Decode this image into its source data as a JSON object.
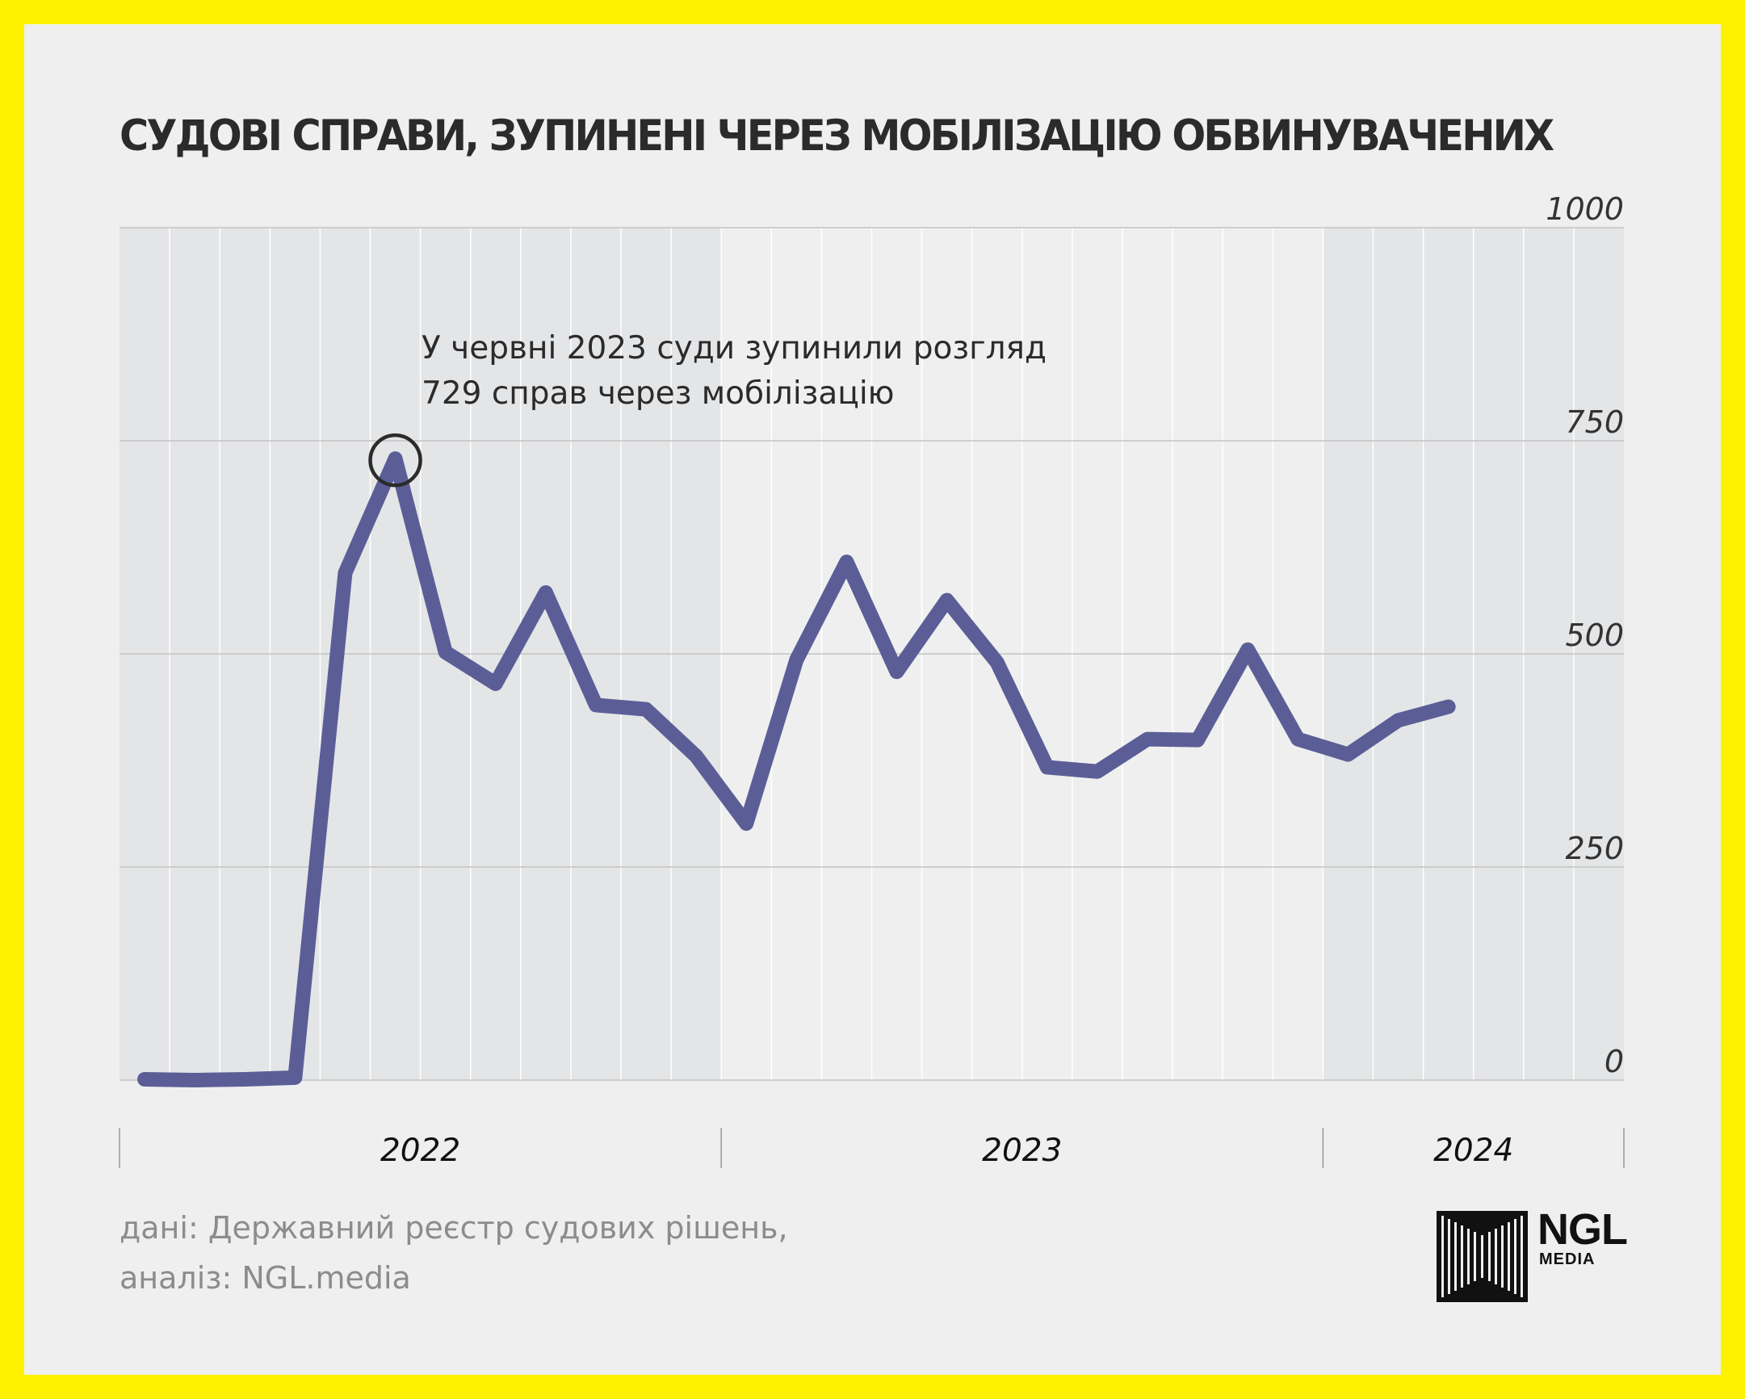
{
  "title": "СУДОВІ СПРАВИ, ЗУПИНЕНІ ЧЕРЕЗ МОБІЛІЗАЦІЮ ОБВИНУВАЧЕНИХ",
  "annotation": {
    "line1": "У червні 2023 суди зупинили розгляд",
    "line2": "729 справ через мобілізацію",
    "highlight_index": 5
  },
  "source": {
    "line1": "дані: Державний реєстр судових рішень,",
    "line2": "аналіз: NGL.media"
  },
  "logo": {
    "main": "NGL",
    "sub": "MEDIA"
  },
  "colors": {
    "line": "#5b5e96",
    "background": "#efefef",
    "band": "#e4e5e7",
    "frame": "#fff200"
  },
  "chart_data": {
    "type": "line",
    "title": "СУДОВІ СПРАВИ, ЗУПИНЕНІ ЧЕРЕЗ МОБІЛІЗАЦІЮ ОБВИНУВАЧЕНИХ",
    "xlabel": "",
    "ylabel": "",
    "ylim": [
      0,
      1000
    ],
    "yticks": [
      0,
      250,
      500,
      750,
      1000
    ],
    "ytick_labels": [
      "0",
      "250",
      "500",
      "750",
      "1000"
    ],
    "year_labels": [
      "2022",
      "2023",
      "2024"
    ],
    "months_total": 30,
    "series": [
      {
        "name": "Судові справи, зупинені через мобілізацію",
        "values": [
          1,
          0,
          1,
          3,
          595,
          729,
          502,
          465,
          572,
          440,
          435,
          380,
          301,
          493,
          608,
          479,
          563,
          490,
          367,
          362,
          400,
          399,
          505,
          400,
          382,
          422,
          438
        ]
      }
    ]
  }
}
